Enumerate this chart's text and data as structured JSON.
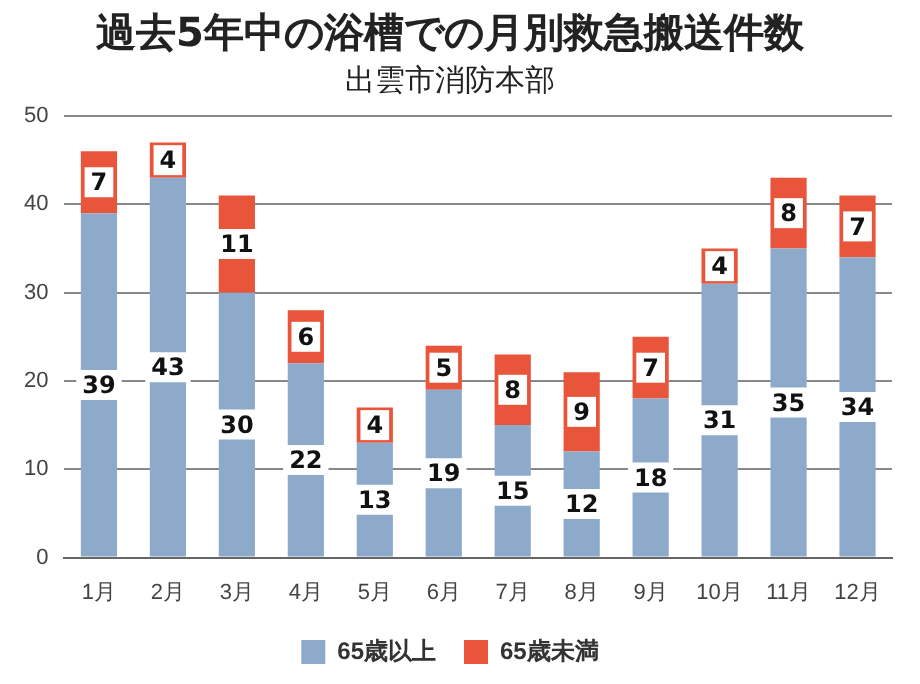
{
  "chart_data": {
    "type": "bar",
    "title": "過去5年中の浴槽での月別救急搬送件数",
    "subtitle": "出雲市消防本部",
    "categories": [
      "1月",
      "2月",
      "3月",
      "4月",
      "5月",
      "6月",
      "7月",
      "8月",
      "9月",
      "10月",
      "11月",
      "12月"
    ],
    "series": [
      {
        "name": "65歳以上",
        "color": "#8eaacb",
        "values": [
          39,
          43,
          30,
          22,
          13,
          19,
          15,
          12,
          18,
          31,
          35,
          34
        ]
      },
      {
        "name": "65歳未満",
        "color": "#e8553a",
        "values": [
          7,
          4,
          11,
          6,
          4,
          5,
          8,
          9,
          7,
          4,
          8,
          7
        ]
      }
    ],
    "stacked": true,
    "ylim": [
      0,
      50
    ],
    "yticks": [
      0,
      10,
      20,
      30,
      40,
      50
    ],
    "grid": "y",
    "legend": "bottom",
    "data_labels": true
  }
}
